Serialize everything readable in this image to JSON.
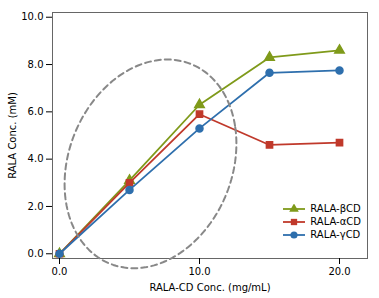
{
  "chart_data": {
    "type": "line",
    "xlabel": "RALA-CD Conc. (mg/mL)",
    "ylabel": "RALA Conc. (mM)",
    "x": [
      0,
      5,
      10,
      15,
      20
    ],
    "series": [
      {
        "name": "RALA-βCD",
        "color": "#7f9a1a",
        "marker": "triangle",
        "values": [
          0,
          3.1,
          6.3,
          8.3,
          8.6
        ]
      },
      {
        "name": "RALA-αCD",
        "color": "#c0392b",
        "marker": "square",
        "values": [
          0,
          3.0,
          5.9,
          4.6,
          4.7
        ]
      },
      {
        "name": "RALA-γCD",
        "color": "#2e6fad",
        "marker": "circle",
        "values": [
          0,
          2.7,
          5.3,
          7.65,
          7.75
        ]
      }
    ],
    "xlim": [
      -0.5,
      22
    ],
    "ylim": [
      -0.2,
      10.2
    ],
    "xticks": [
      {
        "value": 0,
        "label": "0.0"
      },
      {
        "value": 10,
        "label": "10.0"
      },
      {
        "value": 20,
        "label": "20.0"
      }
    ],
    "yticks": [
      {
        "value": 0,
        "label": "0.0"
      },
      {
        "value": 2,
        "label": "2.0"
      },
      {
        "value": 4,
        "label": "4.0"
      },
      {
        "value": 6,
        "label": "6.0"
      },
      {
        "value": 8,
        "label": "8.0"
      },
      {
        "value": 10,
        "label": "10.0"
      }
    ],
    "legend": "lower right",
    "ellipse": {
      "cx": 6.5,
      "cy": 3.8,
      "width": 12.5,
      "height": 8.5,
      "angle": 15,
      "color": "#888888",
      "line_style": "dashed"
    }
  }
}
